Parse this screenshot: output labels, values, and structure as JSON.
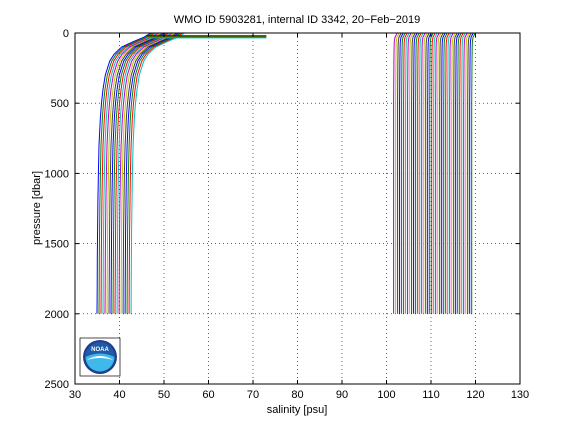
{
  "chart_data": {
    "type": "line",
    "title": "WMO ID 5903281, internal ID 3342, 20−Feb−2019",
    "xlabel": "salinity [psu]",
    "ylabel": "pressure [dbar]",
    "xlim": [
      30,
      130
    ],
    "ylim": [
      0,
      2500
    ],
    "y_reversed": true,
    "grid": true,
    "grid_style": "dotted",
    "xticks": [
      30,
      40,
      50,
      60,
      70,
      80,
      90,
      100,
      110,
      120,
      130
    ],
    "yticks": [
      0,
      500,
      1000,
      1500,
      2000,
      2500
    ],
    "pressure_levels": [
      0,
      30,
      60,
      100,
      150,
      200,
      300,
      400,
      500,
      600,
      800,
      1000,
      1200,
      1400,
      1600,
      1800,
      2000
    ],
    "surface_segment": {
      "pressure": 20,
      "x_start": 46,
      "x_end": 73
    },
    "groups": [
      {
        "name": "left",
        "count": 18,
        "offset_start": 0.0,
        "offset_step": 0.45,
        "salinity": [
          47.0,
          45.5,
          43.2,
          40.5,
          38.8,
          37.8,
          36.8,
          36.3,
          35.95,
          35.7,
          35.4,
          35.25,
          35.15,
          35.08,
          35.02,
          34.98,
          34.95
        ]
      },
      {
        "name": "right",
        "count": 40,
        "offset_start": 67.0,
        "offset_step": 0.45,
        "salinity": [
          35.4,
          34.9,
          34.75,
          34.7,
          34.68,
          34.66,
          34.64,
          34.62,
          34.6,
          34.6,
          34.6,
          34.6,
          34.6,
          34.6,
          34.6,
          34.6,
          34.6
        ]
      }
    ],
    "colors": [
      "#0000ff",
      "#008000",
      "#ff0000",
      "#00bfbf",
      "#bf00bf",
      "#bfbf00",
      "#404040"
    ]
  },
  "logo": {
    "text": "NOAA",
    "outer": "#ffffff",
    "ring": "#1f3f8f",
    "top": "#1e5aa8",
    "bottom": "#3fb8ec"
  },
  "background": "#ffffff",
  "axes_color": "#000000"
}
